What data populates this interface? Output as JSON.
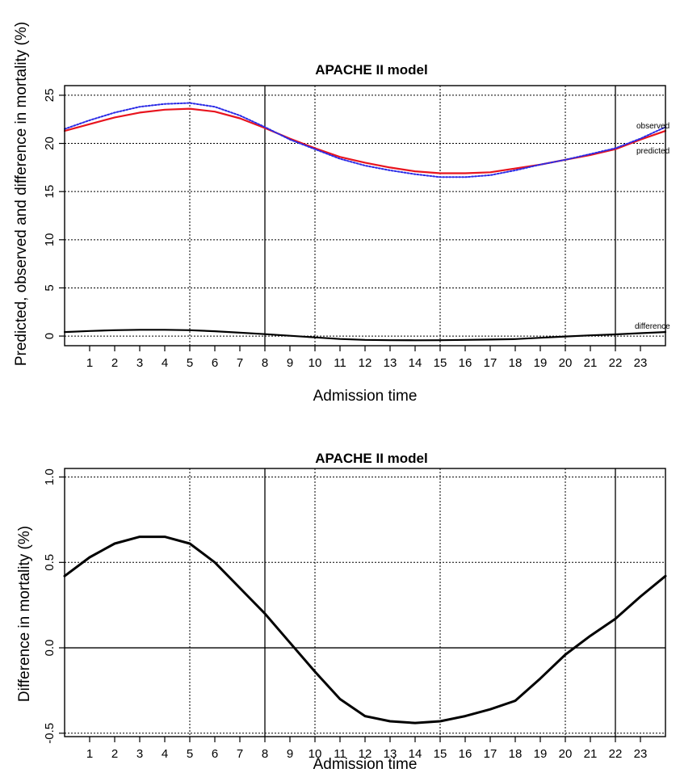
{
  "chart_data": [
    {
      "type": "line",
      "title": "APACHE II model",
      "xlabel": "Admission time",
      "ylabel": "Predicted, observed and difference in mortality (%)",
      "xlim": [
        0,
        24
      ],
      "ylim": [
        -1,
        26
      ],
      "x_ticks": [
        1,
        2,
        3,
        4,
        5,
        6,
        7,
        8,
        9,
        10,
        11,
        12,
        13,
        14,
        15,
        16,
        17,
        18,
        19,
        20,
        21,
        22,
        23
      ],
      "y_ticks": [
        0,
        5,
        10,
        15,
        20,
        25
      ],
      "solid_vlines": [
        8,
        22
      ],
      "dotted_vlines": [
        5,
        10,
        15,
        20
      ],
      "grid": true,
      "x": [
        0,
        1,
        2,
        3,
        4,
        5,
        6,
        7,
        8,
        9,
        10,
        11,
        12,
        13,
        14,
        15,
        16,
        17,
        18,
        19,
        20,
        21,
        22,
        23,
        24
      ],
      "series": [
        {
          "name": "predicted",
          "color": "#e8141e",
          "style": "solid",
          "values": [
            21.3,
            22.0,
            22.7,
            23.2,
            23.5,
            23.6,
            23.3,
            22.6,
            21.6,
            20.5,
            19.5,
            18.6,
            18.0,
            17.5,
            17.1,
            16.9,
            16.9,
            17.0,
            17.4,
            17.8,
            18.3,
            18.8,
            19.4,
            20.4,
            21.3
          ]
        },
        {
          "name": "observed",
          "color": "#2a2ae6",
          "style": "dotted",
          "values": [
            21.5,
            22.4,
            23.2,
            23.8,
            24.1,
            24.2,
            23.8,
            22.9,
            21.7,
            20.4,
            19.4,
            18.4,
            17.7,
            17.2,
            16.8,
            16.5,
            16.5,
            16.7,
            17.2,
            17.8,
            18.3,
            18.9,
            19.5,
            20.5,
            21.7
          ]
        },
        {
          "name": "difference",
          "color": "#000000",
          "style": "solid",
          "values": [
            0.42,
            0.53,
            0.61,
            0.65,
            0.65,
            0.61,
            0.5,
            0.35,
            0.2,
            0.03,
            -0.14,
            -0.3,
            -0.4,
            -0.43,
            -0.44,
            -0.43,
            -0.4,
            -0.36,
            -0.31,
            -0.18,
            -0.04,
            0.07,
            0.17,
            0.3,
            0.42
          ]
        }
      ]
    },
    {
      "type": "line",
      "title": "APACHE II model",
      "xlabel": "Admission time",
      "ylabel": "Difference in mortality (%)",
      "xlim": [
        0,
        24
      ],
      "ylim": [
        -0.52,
        1.05
      ],
      "x_ticks": [
        1,
        2,
        3,
        4,
        5,
        6,
        7,
        8,
        9,
        10,
        11,
        12,
        13,
        14,
        15,
        16,
        17,
        18,
        19,
        20,
        21,
        22,
        23
      ],
      "y_ticks": [
        -0.5,
        0.0,
        0.5,
        1.0
      ],
      "y_tick_labels": [
        "-0.5",
        "0.0",
        "0.5",
        "1.0"
      ],
      "solid_vlines": [
        8,
        22
      ],
      "dotted_vlines": [
        5,
        10,
        15,
        20
      ],
      "solid_hlines": [
        0
      ],
      "grid": true,
      "x": [
        0,
        1,
        2,
        3,
        4,
        5,
        6,
        7,
        8,
        9,
        10,
        11,
        12,
        13,
        14,
        15,
        16,
        17,
        18,
        19,
        20,
        21,
        22,
        23,
        24
      ],
      "series": [
        {
          "color": "#000000",
          "style": "solid",
          "values": [
            0.42,
            0.53,
            0.61,
            0.65,
            0.65,
            0.61,
            0.5,
            0.35,
            0.2,
            0.03,
            -0.14,
            -0.3,
            -0.4,
            -0.43,
            -0.44,
            -0.43,
            -0.4,
            -0.36,
            -0.31,
            -0.18,
            -0.04,
            0.07,
            0.17,
            0.3,
            0.42
          ]
        }
      ]
    }
  ]
}
